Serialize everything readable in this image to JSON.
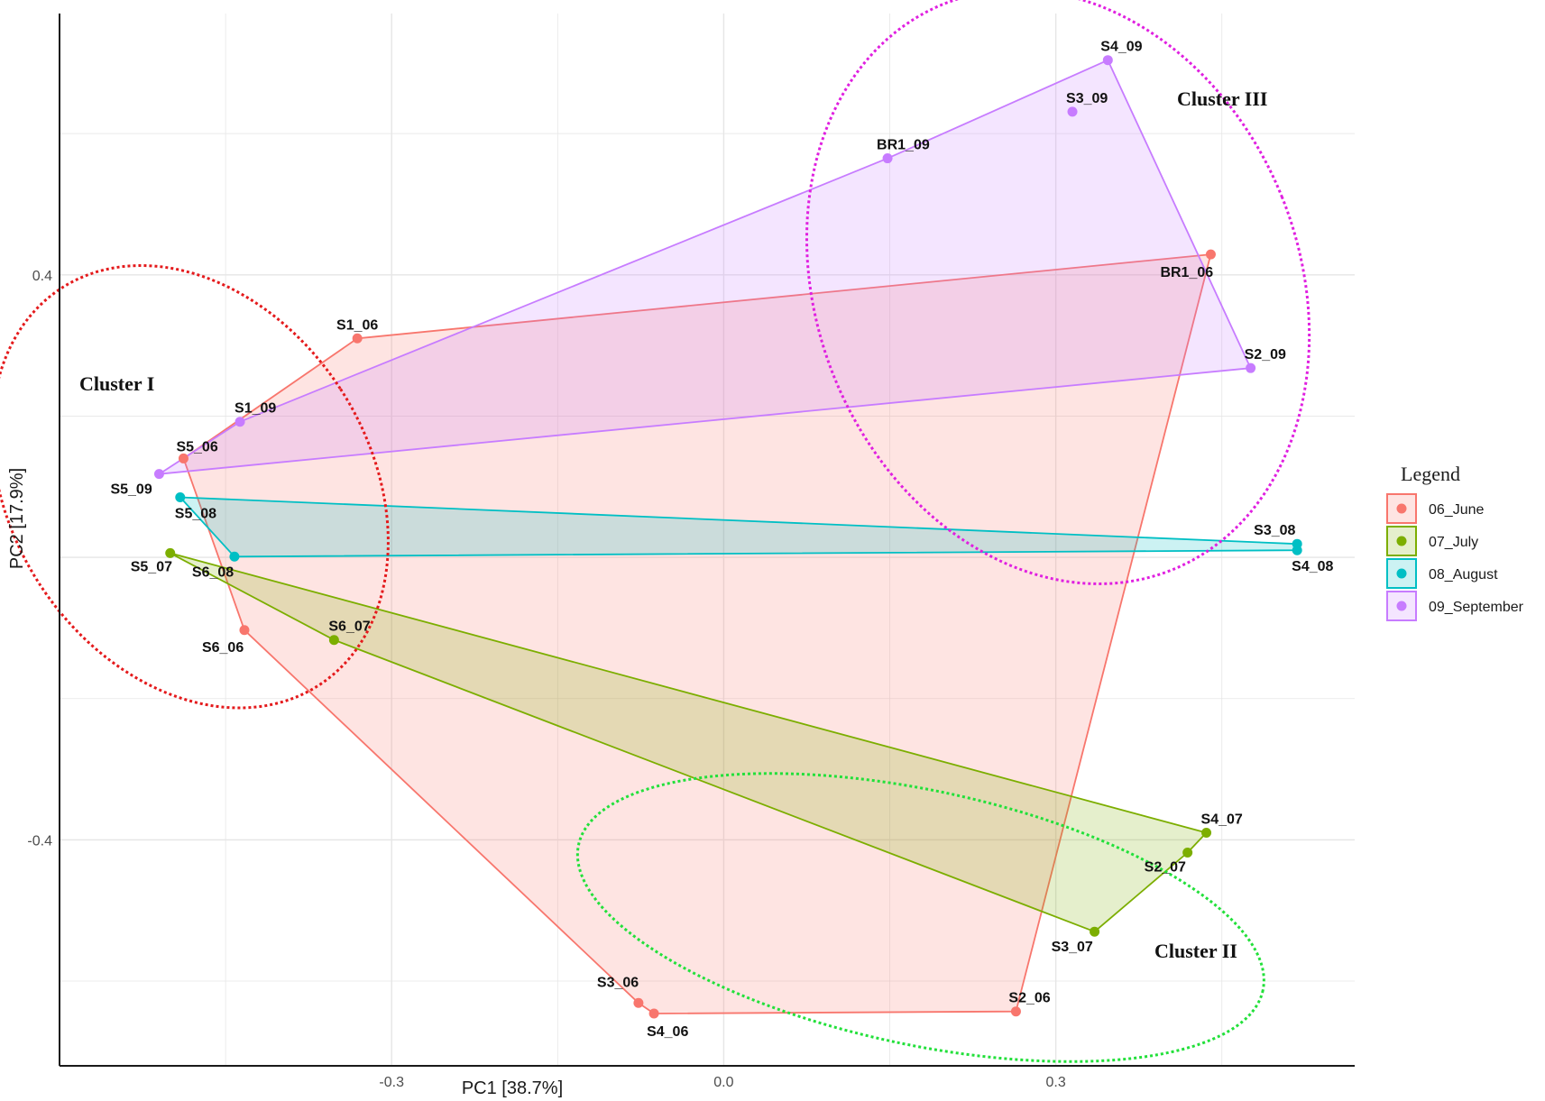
{
  "chart_data": {
    "type": "scatter",
    "xlabel": "PC1 [38.7%]",
    "ylabel": "PC2 [17.9%]",
    "xlim": [
      -0.6,
      0.57
    ],
    "ylim": [
      -0.72,
      0.77
    ],
    "xticks": [
      -0.3,
      0.0,
      0.3
    ],
    "xtick_labels": [
      "-0.3",
      "0.0",
      "0.3"
    ],
    "yticks": [
      -0.4,
      0.4
    ],
    "ytick_labels": [
      "-0.4",
      "0.4"
    ],
    "grid": true,
    "legend": {
      "title": "Legend",
      "position": "right"
    },
    "series": [
      {
        "name": "06_June",
        "color": "#F8766D",
        "points": [
          {
            "label": "S1_06",
            "x": -0.331,
            "y": 0.31
          },
          {
            "label": "S5_06",
            "x": -0.488,
            "y": 0.14
          },
          {
            "label": "S6_06",
            "x": -0.433,
            "y": -0.103
          },
          {
            "label": "S3_06",
            "x": -0.077,
            "y": -0.631
          },
          {
            "label": "S4_06",
            "x": -0.063,
            "y": -0.646
          },
          {
            "label": "S2_06",
            "x": 0.264,
            "y": -0.643
          },
          {
            "label": "BR1_06",
            "x": 0.44,
            "y": 0.429
          }
        ],
        "hull": [
          "S1_06",
          "BR1_06",
          "S2_06",
          "S4_06",
          "S3_06",
          "S6_06",
          "S5_06"
        ]
      },
      {
        "name": "07_July",
        "color": "#7CAE00",
        "points": [
          {
            "label": "S5_07",
            "x": -0.5,
            "y": 0.006
          },
          {
            "label": "S6_07",
            "x": -0.352,
            "y": -0.117
          },
          {
            "label": "S3_07",
            "x": 0.335,
            "y": -0.53
          },
          {
            "label": "S2_07",
            "x": 0.419,
            "y": -0.418
          },
          {
            "label": "S4_07",
            "x": 0.436,
            "y": -0.39
          }
        ],
        "hull": [
          "S5_07",
          "S4_07",
          "S2_07",
          "S3_07",
          "S6_07"
        ]
      },
      {
        "name": "08_August",
        "color": "#00BFC4",
        "points": [
          {
            "label": "S5_08",
            "x": -0.491,
            "y": 0.085
          },
          {
            "label": "S6_08",
            "x": -0.442,
            "y": 0.001
          },
          {
            "label": "S3_08",
            "x": 0.518,
            "y": 0.019
          },
          {
            "label": "S4_08",
            "x": 0.518,
            "y": 0.01
          }
        ],
        "hull": [
          "S5_08",
          "S3_08",
          "S4_08",
          "S6_08"
        ]
      },
      {
        "name": "09_September",
        "color": "#C77CFF",
        "points": [
          {
            "label": "S5_09",
            "x": -0.51,
            "y": 0.118
          },
          {
            "label": "S1_09",
            "x": -0.437,
            "y": 0.192
          },
          {
            "label": "BR1_09",
            "x": 0.148,
            "y": 0.565
          },
          {
            "label": "S3_09",
            "x": 0.315,
            "y": 0.631
          },
          {
            "label": "S4_09",
            "x": 0.347,
            "y": 0.704
          },
          {
            "label": "S2_09",
            "x": 0.476,
            "y": 0.268
          }
        ],
        "hull": [
          "S5_09",
          "S1_09",
          "BR1_09",
          "S4_09",
          "S2_09"
        ]
      }
    ],
    "annotations": [
      {
        "text": "Cluster I",
        "color": "#E41A1C",
        "x": -0.482,
        "y": 0.1,
        "rx": 0.162,
        "ry": 0.335,
        "rotate": -33
      },
      {
        "text": "Cluster II",
        "color": "#22E03A",
        "x": 0.178,
        "y": -0.51,
        "rx": 0.316,
        "ry": 0.18,
        "rotate": 12
      },
      {
        "text": "Cluster III",
        "color": "#E020E0",
        "x": 0.302,
        "y": 0.383,
        "rx": 0.218,
        "ry": 0.432,
        "rotate": -22
      }
    ]
  }
}
